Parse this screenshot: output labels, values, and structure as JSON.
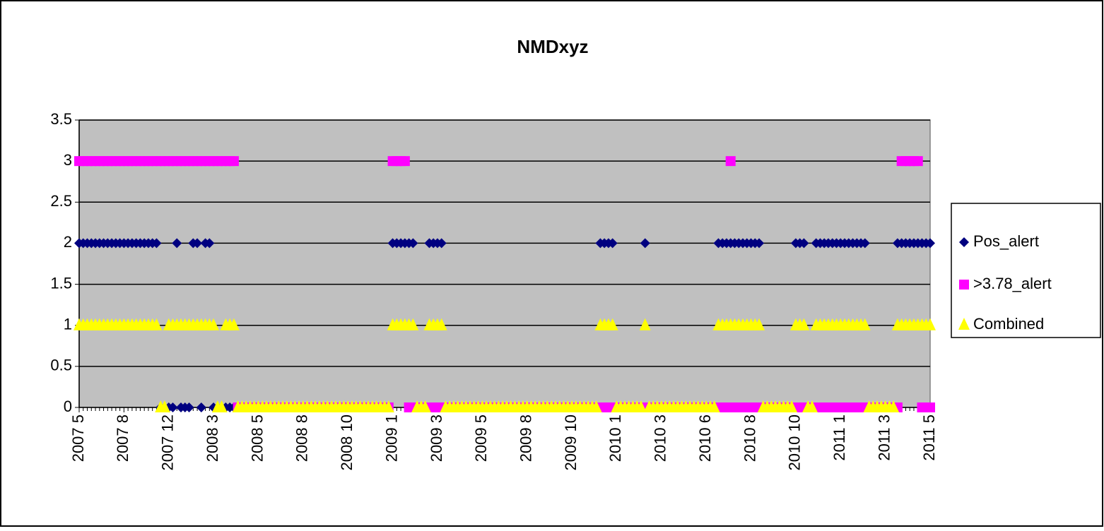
{
  "chart_data": {
    "type": "scatter-line-markers",
    "title": "NMDxyz",
    "categories": [
      "2007 5",
      null,
      null,
      null,
      null,
      null,
      null,
      null,
      null,
      null,
      null,
      "2007 8",
      null,
      null,
      null,
      null,
      null,
      null,
      null,
      null,
      null,
      null,
      "2007 12",
      null,
      null,
      null,
      null,
      null,
      null,
      null,
      null,
      null,
      null,
      "2008 3",
      null,
      null,
      null,
      null,
      null,
      null,
      null,
      null,
      null,
      null,
      "2008 5",
      null,
      null,
      null,
      null,
      null,
      null,
      null,
      null,
      null,
      null,
      "2008 8",
      null,
      null,
      null,
      null,
      null,
      null,
      null,
      null,
      null,
      null,
      "2008 10",
      null,
      null,
      null,
      null,
      null,
      null,
      null,
      null,
      null,
      null,
      "2009 1",
      null,
      null,
      null,
      null,
      null,
      null,
      null,
      null,
      null,
      null,
      "2009 3",
      null,
      null,
      null,
      null,
      null,
      null,
      null,
      null,
      null,
      null,
      "2009 5",
      null,
      null,
      null,
      null,
      null,
      null,
      null,
      null,
      null,
      null,
      "2009 8",
      null,
      null,
      null,
      null,
      null,
      null,
      null,
      null,
      null,
      null,
      "2009 10",
      null,
      null,
      null,
      null,
      null,
      null,
      null,
      null,
      null,
      null,
      "2010 1",
      null,
      null,
      null,
      null,
      null,
      null,
      null,
      null,
      null,
      null,
      "2010 3",
      null,
      null,
      null,
      null,
      null,
      null,
      null,
      null,
      null,
      null,
      "2010 6",
      null,
      null,
      null,
      null,
      null,
      null,
      null,
      null,
      null,
      null,
      "2010 8",
      null,
      null,
      null,
      null,
      null,
      null,
      null,
      null,
      null,
      null,
      "2010 10",
      null,
      null,
      null,
      null,
      null,
      null,
      null,
      null,
      null,
      null,
      "2011 1",
      null,
      null,
      null,
      null,
      null,
      null,
      null,
      null,
      null,
      null,
      "2011 3",
      null,
      null,
      null,
      null,
      null,
      null,
      null,
      null,
      null,
      null,
      "2011 5"
    ],
    "series": [
      {
        "name": "Pos_alert",
        "color": "#000080",
        "marker": "diamond",
        "values": [
          2,
          2,
          2,
          2,
          2,
          2,
          2,
          2,
          2,
          2,
          2,
          2,
          2,
          2,
          2,
          2,
          2,
          2,
          2,
          2,
          0,
          0,
          0,
          0,
          2,
          0,
          0,
          0,
          2,
          2,
          0,
          2,
          2,
          0,
          0,
          0,
          0,
          0,
          0,
          0,
          0,
          0,
          0,
          0,
          0,
          0,
          0,
          0,
          0,
          0,
          0,
          0,
          0,
          0,
          0,
          0,
          0,
          0,
          0,
          0,
          0,
          0,
          0,
          0,
          0,
          0,
          0,
          0,
          0,
          0,
          0,
          0,
          0,
          0,
          0,
          0,
          0,
          2,
          2,
          2,
          2,
          2,
          2,
          0,
          0,
          0,
          2,
          2,
          2,
          2,
          0,
          0,
          0,
          0,
          0,
          0,
          0,
          0,
          0,
          0,
          0,
          0,
          0,
          0,
          0,
          0,
          0,
          0,
          0,
          0,
          0,
          0,
          0,
          0,
          0,
          0,
          0,
          0,
          0,
          0,
          0,
          0,
          0,
          0,
          0,
          0,
          0,
          0,
          2,
          2,
          2,
          2,
          0,
          0,
          0,
          0,
          0,
          0,
          0,
          2,
          0,
          0,
          0,
          0,
          0,
          0,
          0,
          0,
          0,
          0,
          0,
          0,
          0,
          0,
          0,
          0,
          0,
          2,
          2,
          2,
          2,
          2,
          2,
          2,
          2,
          2,
          2,
          2,
          0,
          0,
          0,
          0,
          0,
          0,
          0,
          0,
          2,
          2,
          2,
          0,
          0,
          2,
          2,
          2,
          2,
          2,
          2,
          2,
          2,
          2,
          2,
          2,
          2,
          2,
          0,
          0,
          0,
          0,
          0,
          0,
          0,
          2,
          2,
          2,
          2,
          2,
          2,
          2,
          2,
          2
        ]
      },
      {
        "name": ">3.78_alert",
        "color": "#ff00ff",
        "marker": "square",
        "values": [
          3,
          3,
          3,
          3,
          3,
          3,
          3,
          3,
          3,
          3,
          3,
          3,
          3,
          3,
          3,
          3,
          3,
          3,
          3,
          3,
          3,
          3,
          3,
          3,
          3,
          3,
          3,
          3,
          3,
          3,
          3,
          3,
          3,
          3,
          3,
          3,
          3,
          3,
          3,
          0,
          0,
          0,
          0,
          0,
          0,
          0,
          0,
          0,
          0,
          0,
          0,
          0,
          0,
          0,
          0,
          0,
          0,
          0,
          0,
          0,
          0,
          0,
          0,
          0,
          0,
          0,
          0,
          0,
          0,
          0,
          0,
          0,
          0,
          0,
          0,
          0,
          0,
          3,
          3,
          3,
          3,
          0,
          0,
          0,
          0,
          0,
          0,
          0,
          0,
          0,
          0,
          0,
          0,
          0,
          0,
          0,
          0,
          0,
          0,
          0,
          0,
          0,
          0,
          0,
          0,
          0,
          0,
          0,
          0,
          0,
          0,
          0,
          0,
          0,
          0,
          0,
          0,
          0,
          0,
          0,
          0,
          0,
          0,
          0,
          0,
          0,
          0,
          0,
          0,
          0,
          0,
          0,
          0,
          0,
          0,
          0,
          0,
          0,
          0,
          0,
          0,
          0,
          0,
          0,
          0,
          0,
          0,
          0,
          0,
          0,
          0,
          0,
          0,
          0,
          0,
          0,
          0,
          0,
          0,
          0,
          3,
          0,
          0,
          0,
          0,
          0,
          0,
          0,
          0,
          0,
          0,
          0,
          0,
          0,
          0,
          0,
          0,
          0,
          0,
          0,
          0,
          0,
          0,
          0,
          0,
          0,
          0,
          0,
          0,
          0,
          0,
          0,
          0,
          0,
          0,
          0,
          0,
          0,
          0,
          0,
          0,
          0,
          3,
          3,
          3,
          3,
          3,
          0,
          0,
          0
        ]
      },
      {
        "name": "Combined",
        "color": "#ffff00",
        "marker": "triangle",
        "values": [
          1,
          1,
          1,
          1,
          1,
          1,
          1,
          1,
          1,
          1,
          1,
          1,
          1,
          1,
          1,
          1,
          1,
          1,
          1,
          1,
          0,
          0,
          1,
          1,
          1,
          1,
          1,
          1,
          1,
          1,
          1,
          1,
          1,
          1,
          0,
          0,
          1,
          1,
          1,
          0,
          0,
          0,
          0,
          0,
          0,
          0,
          0,
          0,
          0,
          0,
          0,
          0,
          0,
          0,
          0,
          0,
          0,
          0,
          0,
          0,
          0,
          0,
          0,
          0,
          0,
          0,
          0,
          0,
          0,
          0,
          0,
          0,
          0,
          0,
          0,
          0,
          0,
          1,
          1,
          1,
          1,
          1,
          1,
          0,
          0,
          0,
          1,
          1,
          1,
          1,
          0,
          0,
          0,
          0,
          0,
          0,
          0,
          0,
          0,
          0,
          0,
          0,
          0,
          0,
          0,
          0,
          0,
          0,
          0,
          0,
          0,
          0,
          0,
          0,
          0,
          0,
          0,
          0,
          0,
          0,
          0,
          0,
          0,
          0,
          0,
          0,
          0,
          0,
          1,
          1,
          1,
          1,
          0,
          0,
          0,
          0,
          0,
          0,
          0,
          1,
          0,
          0,
          0,
          0,
          0,
          0,
          0,
          0,
          0,
          0,
          0,
          0,
          0,
          0,
          0,
          0,
          0,
          1,
          1,
          1,
          1,
          1,
          1,
          1,
          1,
          1,
          1,
          1,
          0,
          0,
          0,
          0,
          0,
          0,
          0,
          0,
          1,
          1,
          1,
          0,
          0,
          1,
          1,
          1,
          1,
          1,
          1,
          1,
          1,
          1,
          1,
          1,
          1,
          1,
          0,
          0,
          0,
          0,
          0,
          0,
          0,
          1,
          1,
          1,
          1,
          1,
          1,
          1,
          1,
          1
        ]
      }
    ],
    "ylim": [
      0,
      3.5
    ],
    "yticks": [
      0,
      0.5,
      1,
      1.5,
      2,
      2.5,
      3,
      3.5
    ],
    "grid": true,
    "legend": "right"
  }
}
